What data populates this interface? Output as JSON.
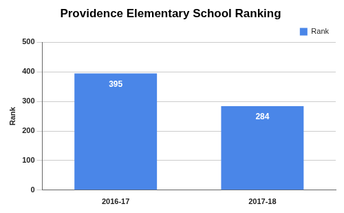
{
  "chart_data": {
    "type": "bar",
    "title": "Providence Elementary School Ranking",
    "y_label": "Rank",
    "categories": [
      "2016-17",
      "2017-18"
    ],
    "series": [
      {
        "name": "Rank",
        "color": "#4a86e8",
        "values": [
          395,
          284
        ]
      }
    ],
    "ylim": [
      0,
      500
    ],
    "yticks": [
      0,
      100,
      200,
      300,
      400,
      500
    ],
    "grid": true,
    "legend": "top-right",
    "data_labels": true
  }
}
